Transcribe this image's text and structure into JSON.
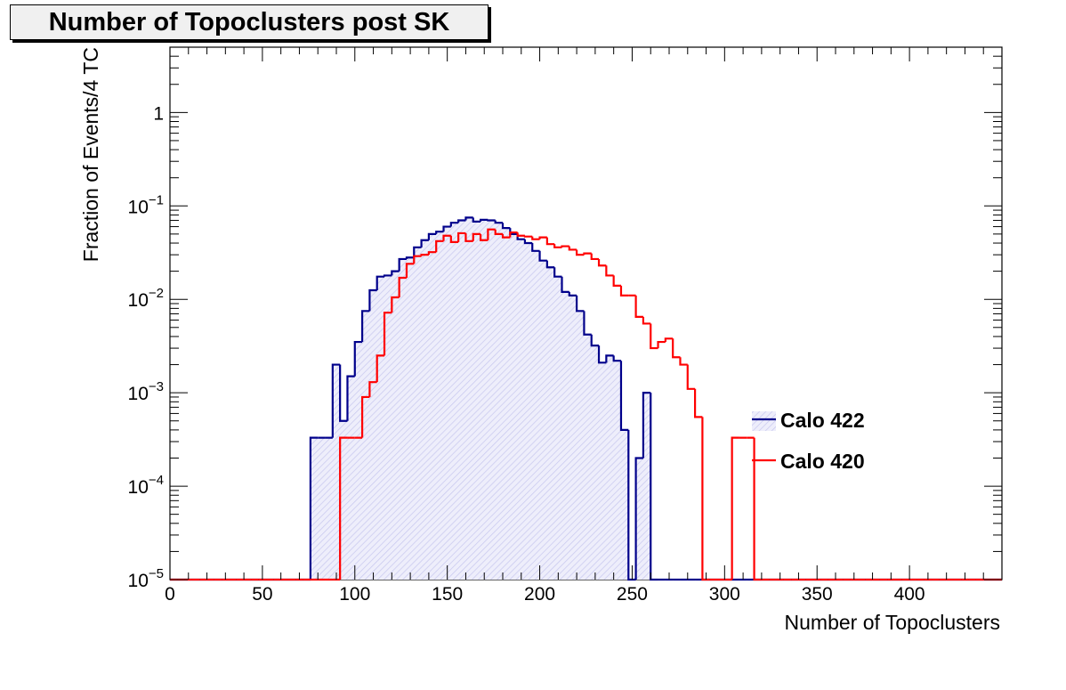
{
  "chart_data": {
    "type": "histogram",
    "title": "Number of Topoclusters post SK",
    "xlabel": "Number of Topoclusters",
    "ylabel": "Fraction of Events/4 TC",
    "xlim": [
      0,
      450
    ],
    "ylim": [
      1e-05,
      5
    ],
    "yscale": "log",
    "x_ticks": [
      0,
      50,
      100,
      150,
      200,
      250,
      300,
      350,
      400
    ],
    "y_ticks": [
      {
        "value": 1e-05,
        "base": "10",
        "exp": "−5"
      },
      {
        "value": 0.0001,
        "base": "10",
        "exp": "−4"
      },
      {
        "value": 0.001,
        "base": "10",
        "exp": "−3"
      },
      {
        "value": 0.01,
        "base": "10",
        "exp": "−2"
      },
      {
        "value": 0.1,
        "base": "10",
        "exp": "−1"
      },
      {
        "value": 1,
        "base": "1",
        "exp": ""
      }
    ],
    "bin_width": 4,
    "bin_start": 0,
    "legend_position": "right",
    "series": [
      {
        "name": "Calo 422",
        "color": "#00008b",
        "fill": "hatched-light-blue",
        "values": [
          0,
          0,
          0,
          0,
          0,
          0,
          0,
          0,
          0,
          0,
          0,
          0,
          0,
          0,
          0,
          0,
          0,
          0,
          0,
          0.00033,
          0.00033,
          0.00033,
          0.002,
          0.0005,
          0.0015,
          0.0035,
          0.0075,
          0.0125,
          0.0175,
          0.018,
          0.02,
          0.027,
          0.028,
          0.036,
          0.043,
          0.05,
          0.053,
          0.06,
          0.066,
          0.07,
          0.075,
          0.068,
          0.071,
          0.07,
          0.066,
          0.058,
          0.05,
          0.044,
          0.04,
          0.033,
          0.026,
          0.022,
          0.0175,
          0.012,
          0.011,
          0.0075,
          0.0042,
          0.0032,
          0.0021,
          0.0025,
          0.0022,
          0.0004,
          0,
          0.0002,
          0.001,
          0,
          0,
          0,
          0,
          0,
          0,
          0,
          0,
          0,
          0,
          0,
          0,
          0,
          0,
          0,
          0,
          0,
          0,
          0,
          0,
          0,
          0,
          0,
          0,
          0,
          0,
          0,
          0,
          0,
          0,
          0,
          0,
          0,
          0,
          0,
          0,
          0,
          0,
          0,
          0,
          0,
          0,
          0,
          0,
          0,
          0,
          0,
          0
        ]
      },
      {
        "name": "Calo 420",
        "color": "#ff0000",
        "fill": "none",
        "values": [
          0,
          0,
          0,
          0,
          0,
          0,
          0,
          0,
          0,
          0,
          0,
          0,
          0,
          0,
          0,
          0,
          0,
          0,
          0,
          0,
          0,
          0,
          0,
          0.00033,
          0.00033,
          0.00033,
          0.0009,
          0.0013,
          0.0025,
          0.0072,
          0.0105,
          0.017,
          0.024,
          0.029,
          0.03,
          0.032,
          0.042,
          0.048,
          0.041,
          0.051,
          0.042,
          0.05,
          0.043,
          0.056,
          0.05,
          0.046,
          0.052,
          0.048,
          0.047,
          0.044,
          0.046,
          0.039,
          0.036,
          0.037,
          0.034,
          0.03,
          0.031,
          0.027,
          0.023,
          0.018,
          0.014,
          0.011,
          0.011,
          0.0065,
          0.0055,
          0.003,
          0.0035,
          0.0038,
          0.0024,
          0.002,
          0.0011,
          0.00055,
          0,
          0,
          0,
          0,
          0.00033,
          0.00033,
          0.00033,
          0,
          0,
          0,
          0,
          0,
          0,
          0,
          0,
          0,
          0,
          0,
          0,
          0,
          0,
          0,
          0,
          0,
          0,
          0,
          0,
          0,
          0,
          0,
          0,
          0,
          0,
          0,
          0,
          0,
          0,
          0,
          0,
          0,
          0,
          0,
          0,
          0,
          0,
          0
        ]
      }
    ]
  }
}
